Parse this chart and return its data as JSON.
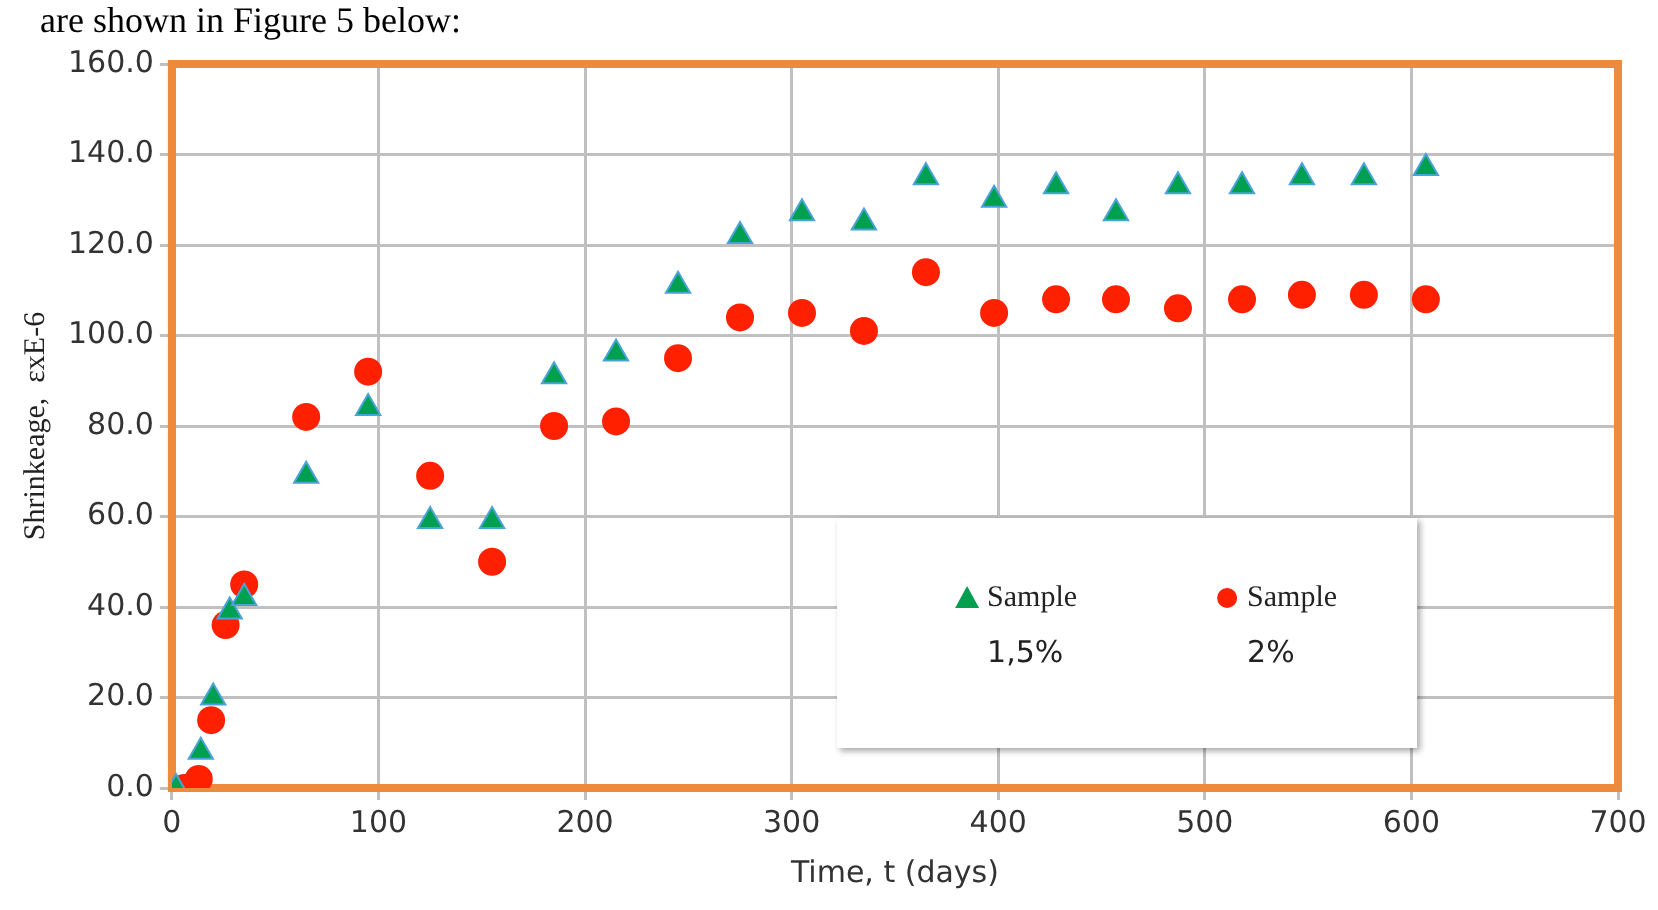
{
  "chart_data": {
    "type": "scatter",
    "xlabel": "Time, t (days)",
    "ylabel": "Shrinkeage,  εxE-6",
    "annotations": [
      "are shown in Figure 5 below:"
    ],
    "xlim": [
      0,
      700
    ],
    "xticks": [
      0,
      100,
      200,
      300,
      400,
      500,
      600,
      700
    ],
    "ylim": [
      0,
      160
    ],
    "yticks": [
      {
        "value": 0,
        "label": "0.0"
      },
      {
        "value": 20,
        "label": "20.0"
      },
      {
        "value": 40,
        "label": "40.0"
      },
      {
        "value": 60,
        "label": "60.0"
      },
      {
        "value": 80,
        "label": "80.0"
      },
      {
        "value": 100,
        "label": "100.0"
      },
      {
        "value": 120,
        "label": "120.0"
      },
      {
        "value": 140,
        "label": "140.0"
      },
      {
        "value": 160,
        "label": "160.0"
      }
    ],
    "grid": true,
    "legend": "bottom right",
    "series": [
      {
        "name": "Sample 1,5%",
        "color": "#00a050",
        "marker": "triangle",
        "x": [
          2,
          14,
          20,
          28,
          35,
          65,
          95,
          125,
          155,
          185,
          215,
          245,
          275,
          305,
          335,
          365,
          398,
          428,
          457,
          487,
          518,
          547,
          577,
          607
        ],
        "values": [
          0,
          8,
          20,
          39,
          42,
          69,
          84,
          59,
          59,
          91,
          96,
          111,
          122,
          127,
          125,
          135,
          130,
          133,
          127,
          133,
          133,
          135,
          135,
          137
        ]
      },
      {
        "name": "Sample 2%",
        "color": "#ff2000",
        "marker": "circle",
        "x": [
          6,
          13,
          19,
          26,
          35,
          65,
          95,
          125,
          155,
          185,
          215,
          245,
          275,
          305,
          335,
          365,
          398,
          428,
          457,
          487,
          518,
          547,
          577,
          607
        ],
        "values": [
          0,
          2,
          15,
          36,
          45,
          82,
          92,
          69,
          50,
          80,
          81,
          95,
          104,
          105,
          101,
          114,
          105,
          108,
          108,
          106,
          108,
          109,
          109,
          108
        ]
      }
    ]
  }
}
